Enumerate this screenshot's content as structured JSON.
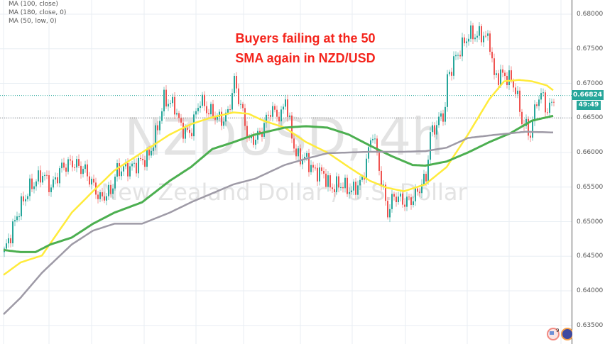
{
  "legend": [
    "MA (100, close)",
    "MA (180, close, 0)",
    "MA (50, low, 0)"
  ],
  "annotation": {
    "line1": "Buyers failing at the 50",
    "line2": "SMA again in NZD/USD"
  },
  "watermark": {
    "symbol": "NZDUSD, 4h",
    "description": "New Zealand Dollar / U.S. Dollar"
  },
  "last_price": "0.66824",
  "countdown": "49:49",
  "flags_badge": "9",
  "colors": {
    "up": "#26a69a",
    "down": "#ef5350",
    "ma50": "#ffeb3b",
    "ma100": "#4caf50",
    "ma180": "#9e9aa6",
    "annotation": "#f4241c",
    "price_tag": "#26a69a"
  },
  "chart_data": {
    "type": "candlestick",
    "title": "",
    "ylim": [
      0.633,
      0.682
    ],
    "yticks": [
      "0.68000",
      "0.67500",
      "0.67000",
      "0.66500",
      "0.66000",
      "0.65500",
      "0.65000",
      "0.64500",
      "0.64000",
      "0.63500"
    ],
    "grid": true,
    "price_path": [
      [
        0,
        0.6456
      ],
      [
        3,
        0.6482
      ],
      [
        7,
        0.6518
      ],
      [
        12,
        0.6549
      ],
      [
        18,
        0.6569
      ],
      [
        22,
        0.6549
      ],
      [
        27,
        0.6579
      ],
      [
        32,
        0.6585
      ],
      [
        38,
        0.6574
      ],
      [
        45,
        0.6533
      ],
      [
        50,
        0.6544
      ],
      [
        53,
        0.6574
      ],
      [
        60,
        0.6579
      ],
      [
        68,
        0.6595
      ],
      [
        72,
        0.6636
      ],
      [
        75,
        0.6677
      ],
      [
        80,
        0.6667
      ],
      [
        83,
        0.6636
      ],
      [
        87,
        0.6626
      ],
      [
        92,
        0.6677
      ],
      [
        95,
        0.6662
      ],
      [
        98,
        0.6656
      ],
      [
        102,
        0.6646
      ],
      [
        105,
        0.6656
      ],
      [
        108,
        0.6703
      ],
      [
        112,
        0.6656
      ],
      [
        115,
        0.6615
      ],
      [
        120,
        0.6626
      ],
      [
        125,
        0.6662
      ],
      [
        130,
        0.6651
      ],
      [
        132,
        0.6682
      ],
      [
        133,
        0.6656
      ],
      [
        137,
        0.6595
      ],
      [
        142,
        0.659
      ],
      [
        145,
        0.6574
      ],
      [
        150,
        0.6569
      ],
      [
        153,
        0.6549
      ],
      [
        158,
        0.6554
      ],
      [
        163,
        0.6544
      ],
      [
        168,
        0.6559
      ],
      [
        173,
        0.6631
      ],
      [
        177,
        0.6559
      ],
      [
        180,
        0.6513
      ],
      [
        183,
        0.6538
      ],
      [
        188,
        0.6528
      ],
      [
        192,
        0.6533
      ],
      [
        195,
        0.6549
      ],
      [
        198,
        0.6564
      ],
      [
        200,
        0.6626
      ],
      [
        203,
        0.6641
      ],
      [
        207,
        0.6662
      ],
      [
        208,
        0.6708
      ],
      [
        212,
        0.6738
      ],
      [
        215,
        0.6754
      ],
      [
        218,
        0.677
      ],
      [
        222,
        0.677
      ],
      [
        225,
        0.677
      ],
      [
        228,
        0.6759
      ],
      [
        230,
        0.6708
      ],
      [
        233,
        0.6713
      ],
      [
        237,
        0.6708
      ],
      [
        240,
        0.6692
      ],
      [
        243,
        0.6646
      ],
      [
        247,
        0.6626
      ],
      [
        250,
        0.6677
      ],
      [
        253,
        0.6682
      ],
      [
        255,
        0.6656
      ],
      [
        258,
        0.66824
      ]
    ],
    "series": [
      {
        "name": "MA (50, low, 0)",
        "color": "#ffeb3b",
        "points": [
          [
            0,
            0.6423
          ],
          [
            8,
            0.6441
          ],
          [
            18,
            0.6451
          ],
          [
            32,
            0.6513
          ],
          [
            42,
            0.6544
          ],
          [
            52,
            0.6574
          ],
          [
            65,
            0.66
          ],
          [
            78,
            0.6626
          ],
          [
            88,
            0.6641
          ],
          [
            98,
            0.6651
          ],
          [
            108,
            0.6658
          ],
          [
            115,
            0.6656
          ],
          [
            122,
            0.6646
          ],
          [
            132,
            0.6636
          ],
          [
            142,
            0.6615
          ],
          [
            152,
            0.66
          ],
          [
            162,
            0.6579
          ],
          [
            172,
            0.6559
          ],
          [
            180,
            0.6549
          ],
          [
            188,
            0.6544
          ],
          [
            198,
            0.6554
          ],
          [
            208,
            0.6579
          ],
          [
            218,
            0.6626
          ],
          [
            228,
            0.6677
          ],
          [
            235,
            0.6703
          ],
          [
            242,
            0.6705
          ],
          [
            248,
            0.6703
          ],
          [
            255,
            0.6697
          ],
          [
            258,
            0.669
          ]
        ]
      },
      {
        "name": "MA (100, close)",
        "color": "#4caf50",
        "points": [
          [
            0,
            0.6459
          ],
          [
            8,
            0.6456
          ],
          [
            15,
            0.6456
          ],
          [
            22,
            0.6467
          ],
          [
            32,
            0.6477
          ],
          [
            42,
            0.6497
          ],
          [
            52,
            0.6513
          ],
          [
            65,
            0.6528
          ],
          [
            78,
            0.6559
          ],
          [
            88,
            0.6579
          ],
          [
            98,
            0.6605
          ],
          [
            108,
            0.6615
          ],
          [
            118,
            0.6626
          ],
          [
            132,
            0.6636
          ],
          [
            142,
            0.6638
          ],
          [
            152,
            0.6636
          ],
          [
            162,
            0.6626
          ],
          [
            172,
            0.661
          ],
          [
            182,
            0.6595
          ],
          [
            192,
            0.6582
          ],
          [
            198,
            0.6581
          ],
          [
            208,
            0.6587
          ],
          [
            218,
            0.66
          ],
          [
            228,
            0.6615
          ],
          [
            238,
            0.6628
          ],
          [
            248,
            0.6646
          ],
          [
            258,
            0.6653
          ]
        ]
      },
      {
        "name": "MA (180, close, 0)",
        "color": "#9e9aa6",
        "points": [
          [
            0,
            0.6366
          ],
          [
            8,
            0.639
          ],
          [
            18,
            0.6426
          ],
          [
            32,
            0.6467
          ],
          [
            42,
            0.6487
          ],
          [
            52,
            0.6497
          ],
          [
            65,
            0.6497
          ],
          [
            78,
            0.6513
          ],
          [
            88,
            0.6528
          ],
          [
            98,
            0.6541
          ],
          [
            108,
            0.6554
          ],
          [
            118,
            0.6562
          ],
          [
            132,
            0.6582
          ],
          [
            142,
            0.6591
          ],
          [
            152,
            0.6599
          ],
          [
            162,
            0.66
          ],
          [
            172,
            0.6601
          ],
          [
            188,
            0.6601
          ],
          [
            198,
            0.6602
          ],
          [
            208,
            0.6607
          ],
          [
            218,
            0.6621
          ],
          [
            232,
            0.6626
          ],
          [
            245,
            0.663
          ],
          [
            258,
            0.6629
          ]
        ]
      }
    ]
  }
}
